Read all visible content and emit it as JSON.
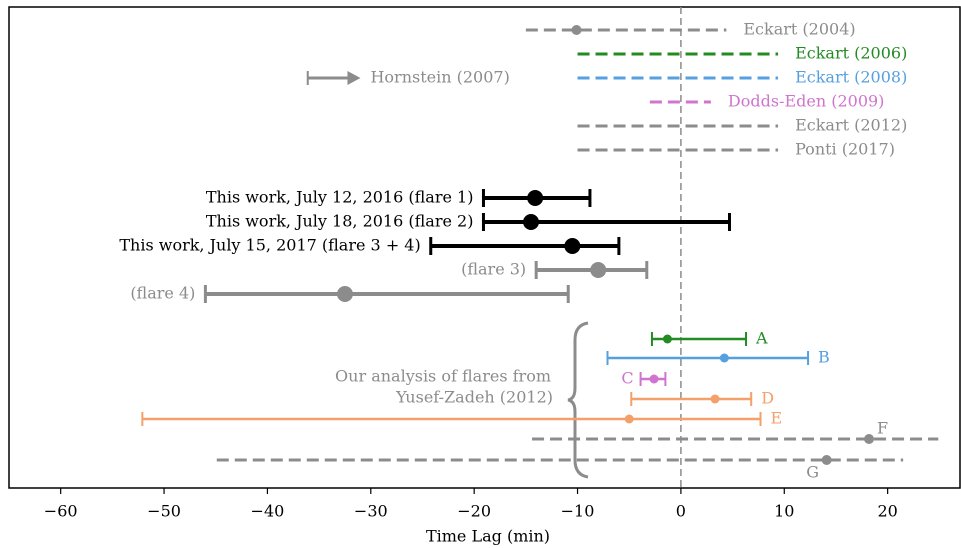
{
  "chart_data": {
    "type": "errorbar",
    "x_label": "Time Lag (min)",
    "xlim": [
      -65,
      27
    ],
    "xticks": [
      {
        "value": -60,
        "label": "−60"
      },
      {
        "value": -50,
        "label": "−50"
      },
      {
        "value": -40,
        "label": "−40"
      },
      {
        "value": -30,
        "label": "−30"
      },
      {
        "value": -20,
        "label": "−20"
      },
      {
        "value": -10,
        "label": "−10"
      },
      0,
      10,
      20
    ],
    "reference_line": 0,
    "annotation": [
      "Our analysis of flares from",
      "Yusef-Zadeh (2012)"
    ],
    "literature": [
      {
        "name": "Eckart (2004)",
        "color": "#8c8c8c",
        "style": "dashed",
        "low": -15,
        "high": 4.4,
        "value": -10.1
      },
      {
        "name": "Eckart (2006)",
        "color": "#228b22",
        "style": "dashed",
        "low": -10,
        "high": 9.4
      },
      {
        "name": "Eckart (2008)",
        "color": "#56a0e0",
        "style": "dashed",
        "low": -10,
        "high": 9.4
      },
      {
        "name": "Hornstein (2007)",
        "color": "#8c8c8c",
        "style": "arrow",
        "low": -36.1,
        "high": -31
      },
      {
        "name": "Dodds-Eden (2009)",
        "color": "#cf74cf",
        "style": "dashed",
        "low": -3,
        "high": 2.9
      },
      {
        "name": "Eckart (2012)",
        "color": "#8c8c8c",
        "style": "dashed",
        "low": -10,
        "high": 9.4
      },
      {
        "name": "Ponti (2017)",
        "color": "#8c8c8c",
        "style": "dashed",
        "low": -10,
        "high": 9.4
      }
    ],
    "this_work": [
      {
        "name": "This work, July 12, 2016 (flare 1)",
        "color": "#000000",
        "low": -19.1,
        "high": -8.8,
        "value": -14.1
      },
      {
        "name": "This work, July 18, 2016 (flare 2)",
        "color": "#000000",
        "low": -19.1,
        "high": 4.7,
        "value": -14.5
      },
      {
        "name": "This work, July 15, 2017 (flare 3 + 4)",
        "color": "#000000",
        "low": -24.2,
        "high": -6.0,
        "value": -10.5
      },
      {
        "name": "(flare 3)",
        "color": "#8c8c8c",
        "low": -14,
        "high": -3.3,
        "value": -8.0
      },
      {
        "name": "(flare 4)",
        "color": "#8c8c8c",
        "low": -46,
        "high": -10.9,
        "value": -32.5
      }
    ],
    "yusef_zadeh": [
      {
        "name": "A",
        "color": "#228b22",
        "style": "errorbar",
        "low": -2.8,
        "high": 6.3,
        "value": -1.3
      },
      {
        "name": "B",
        "color": "#56a0e0",
        "style": "errorbar",
        "low": -7.1,
        "high": 12.3,
        "value": 4.2
      },
      {
        "name": "C",
        "color": "#cf74cf",
        "style": "errorbar",
        "low": -3.9,
        "high": -1.5,
        "value": -2.6
      },
      {
        "name": "D",
        "color": "#f4a06a",
        "style": "errorbar",
        "low": -4.8,
        "high": 6.8,
        "value": 3.3
      },
      {
        "name": "E",
        "color": "#f4a06a",
        "style": "errorbar",
        "low": -52.1,
        "high": 7.7,
        "value": -5.0
      },
      {
        "name": "F",
        "color": "#8c8c8c",
        "style": "dashed",
        "low": -14.4,
        "high": 24.9,
        "value": 18.2
      },
      {
        "name": "G",
        "color": "#8c8c8c",
        "style": "dashed",
        "low": -44.9,
        "high": 21.5,
        "value": 14.1
      }
    ]
  }
}
